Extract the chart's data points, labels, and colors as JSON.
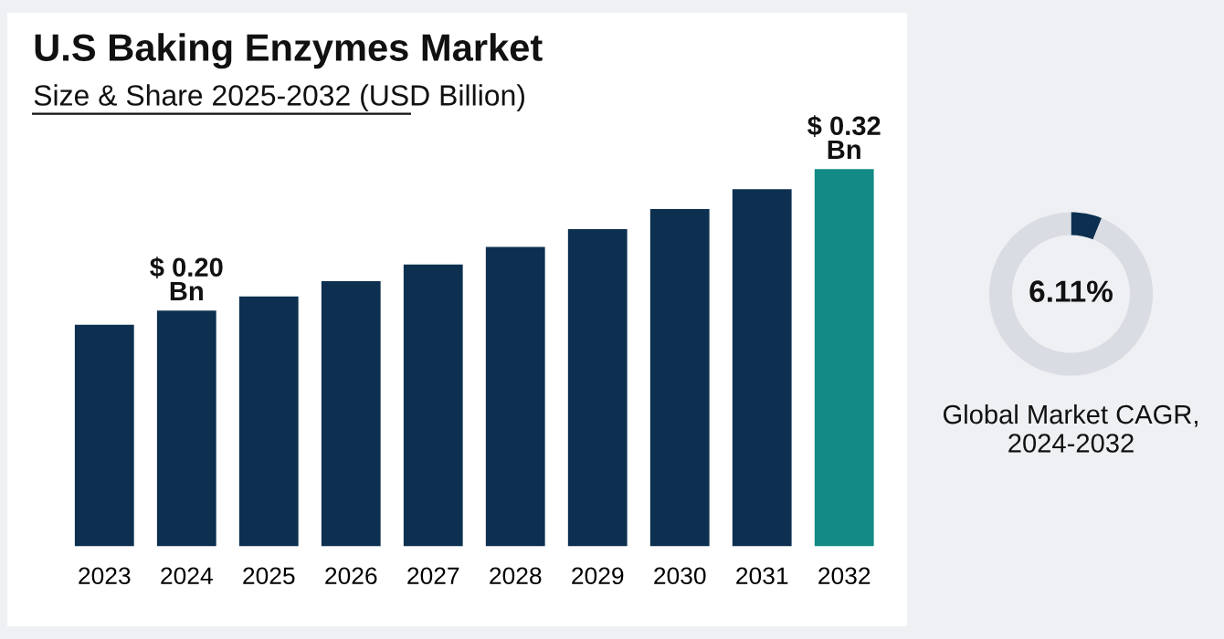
{
  "chart_data": [
    {
      "type": "bar",
      "title": "U.S Baking Enzymes Market",
      "subtitle": "Size & Share 2025-2032 (USD Billion)",
      "categories": [
        "2023",
        "2024",
        "2025",
        "2026",
        "2027",
        "2028",
        "2029",
        "2030",
        "2031",
        "2032"
      ],
      "values": [
        0.188,
        0.2,
        0.212,
        0.225,
        0.239,
        0.254,
        0.269,
        0.286,
        0.303,
        0.32
      ],
      "colors": [
        "#0d3050",
        "#0d3050",
        "#0d3050",
        "#0d3050",
        "#0d3050",
        "#0d3050",
        "#0d3050",
        "#0d3050",
        "#0d3050",
        "#138a84"
      ],
      "value_labels": [
        null,
        "$ 0.20 Bn",
        null,
        null,
        null,
        null,
        null,
        null,
        null,
        "$ 0.32 Bn"
      ],
      "tick_labels": "x"
    },
    {
      "type": "donut",
      "title": "6.11%",
      "categories": [
        null,
        null
      ],
      "values": [
        6.11,
        93.89
      ],
      "colors": [
        "#0d3050",
        "#d9dde3"
      ],
      "annotations": [
        "Global Market CAGR, 2024-2032"
      ]
    }
  ]
}
